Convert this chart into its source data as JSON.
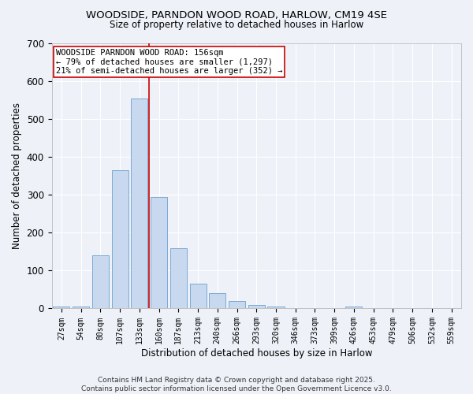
{
  "title1": "WOODSIDE, PARNDON WOOD ROAD, HARLOW, CM19 4SE",
  "title2": "Size of property relative to detached houses in Harlow",
  "xlabel": "Distribution of detached houses by size in Harlow",
  "ylabel": "Number of detached properties",
  "categories": [
    "27sqm",
    "54sqm",
    "80sqm",
    "107sqm",
    "133sqm",
    "160sqm",
    "187sqm",
    "213sqm",
    "240sqm",
    "266sqm",
    "293sqm",
    "320sqm",
    "346sqm",
    "373sqm",
    "399sqm",
    "426sqm",
    "453sqm",
    "479sqm",
    "506sqm",
    "532sqm",
    "559sqm"
  ],
  "values": [
    5,
    5,
    140,
    365,
    555,
    295,
    160,
    65,
    40,
    20,
    10,
    5,
    0,
    0,
    0,
    5,
    0,
    0,
    0,
    0,
    0
  ],
  "bar_color": "#c8d8ee",
  "bar_edge_color": "#7baad4",
  "vline_x": 4.5,
  "vline_color": "#cc0000",
  "annotation_text": "WOODSIDE PARNDON WOOD ROAD: 156sqm\n← 79% of detached houses are smaller (1,297)\n21% of semi-detached houses are larger (352) →",
  "box_color": "white",
  "box_edge_color": "#cc0000",
  "footer": "Contains HM Land Registry data © Crown copyright and database right 2025.\nContains public sector information licensed under the Open Government Licence v3.0.",
  "ylim": [
    0,
    700
  ],
  "yticks": [
    0,
    100,
    200,
    300,
    400,
    500,
    600,
    700
  ],
  "background_color": "#eef2f8",
  "grid_color": "#ffffff",
  "title_fontsize": 9.5,
  "subtitle_fontsize": 8.5,
  "bar_width": 0.85
}
